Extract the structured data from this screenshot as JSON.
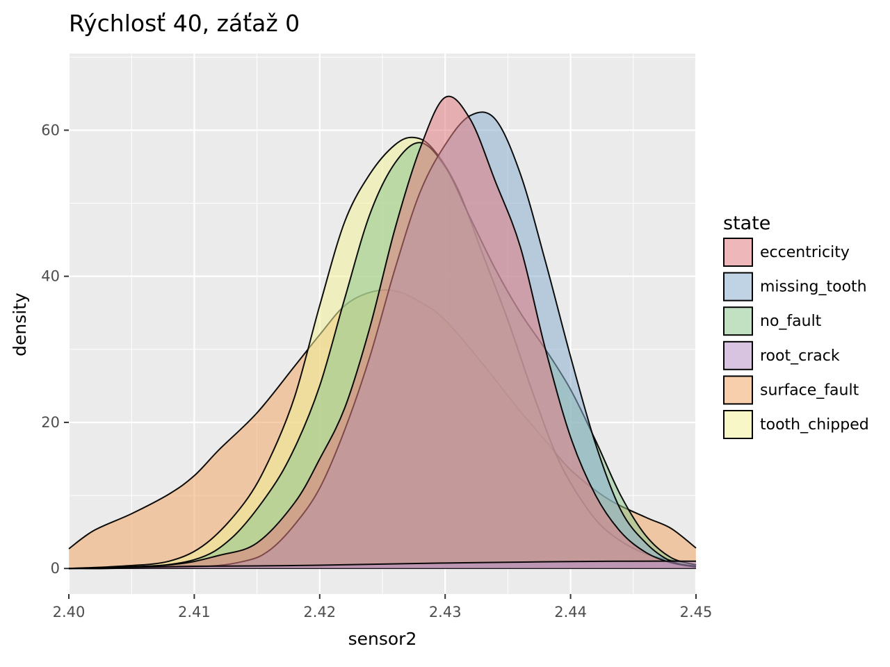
{
  "chart_data": {
    "type": "area",
    "title": "Rýchlosť 40, záťaž 0",
    "xlabel": "sensor2",
    "ylabel": "density",
    "xlim": [
      2.4,
      2.45
    ],
    "ylim": [
      -3.5,
      70.5
    ],
    "x_ticks": [
      2.4,
      2.41,
      2.42,
      2.43,
      2.44,
      2.45
    ],
    "x_tick_labels": [
      "2.40",
      "2.41",
      "2.42",
      "2.43",
      "2.44",
      "2.45"
    ],
    "y_ticks": [
      0,
      20,
      40,
      60
    ],
    "y_tick_labels": [
      "0",
      "20",
      "40",
      "60"
    ],
    "grid": true,
    "legend_title": "state",
    "legend_position": "right",
    "series": [
      {
        "name": "surface_fault",
        "color": "#F0A868",
        "points": [
          [
            2.4,
            2.7
          ],
          [
            2.402,
            5.2
          ],
          [
            2.405,
            7.5
          ],
          [
            2.408,
            10.2
          ],
          [
            2.41,
            12.7
          ],
          [
            2.412,
            16.3
          ],
          [
            2.415,
            21.3
          ],
          [
            2.418,
            27.7
          ],
          [
            2.42,
            32.0
          ],
          [
            2.422,
            36.0
          ],
          [
            2.424,
            37.8
          ],
          [
            2.426,
            38.0
          ],
          [
            2.428,
            36.5
          ],
          [
            2.43,
            34.0
          ],
          [
            2.433,
            28.0
          ],
          [
            2.436,
            21.5
          ],
          [
            2.438,
            17.5
          ],
          [
            2.44,
            13.5
          ],
          [
            2.443,
            9.5
          ],
          [
            2.446,
            7.0
          ],
          [
            2.448,
            5.5
          ],
          [
            2.45,
            2.8
          ]
        ]
      },
      {
        "name": "tooth_chipped",
        "color": "#F0F09A",
        "points": [
          [
            2.4,
            0.0
          ],
          [
            2.404,
            0.3
          ],
          [
            2.408,
            1.0
          ],
          [
            2.411,
            3.5
          ],
          [
            2.414,
            9.0
          ],
          [
            2.416,
            15.0
          ],
          [
            2.418,
            23.5
          ],
          [
            2.42,
            36.0
          ],
          [
            2.422,
            47.5
          ],
          [
            2.424,
            54.0
          ],
          [
            2.426,
            58.0
          ],
          [
            2.4275,
            59.0
          ],
          [
            2.429,
            57.5
          ],
          [
            2.431,
            52.0
          ],
          [
            2.433,
            43.0
          ],
          [
            2.435,
            34.0
          ],
          [
            2.437,
            24.0
          ],
          [
            2.439,
            15.0
          ],
          [
            2.441,
            9.0
          ],
          [
            2.443,
            5.0
          ],
          [
            2.446,
            2.0
          ],
          [
            2.45,
            0.5
          ]
        ]
      },
      {
        "name": "no_fault",
        "color": "#90C890",
        "points": [
          [
            2.4,
            0.0
          ],
          [
            2.405,
            0.1
          ],
          [
            2.41,
            1.2
          ],
          [
            2.413,
            4.2
          ],
          [
            2.416,
            10.5
          ],
          [
            2.418,
            16.5
          ],
          [
            2.42,
            25.0
          ],
          [
            2.422,
            37.0
          ],
          [
            2.424,
            48.5
          ],
          [
            2.426,
            55.5
          ],
          [
            2.428,
            58.3
          ],
          [
            2.43,
            55.0
          ],
          [
            2.432,
            48.0
          ],
          [
            2.434,
            41.0
          ],
          [
            2.436,
            35.0
          ],
          [
            2.438,
            30.0
          ],
          [
            2.44,
            24.5
          ],
          [
            2.442,
            17.5
          ],
          [
            2.444,
            10.0
          ],
          [
            2.446,
            4.5
          ],
          [
            2.448,
            1.5
          ],
          [
            2.45,
            0.5
          ]
        ]
      },
      {
        "name": "missing_tooth",
        "color": "#8CAED0",
        "points": [
          [
            2.4,
            0.0
          ],
          [
            2.41,
            0.2
          ],
          [
            2.414,
            1.0
          ],
          [
            2.416,
            2.5
          ],
          [
            2.418,
            6.0
          ],
          [
            2.42,
            11.0
          ],
          [
            2.422,
            19.0
          ],
          [
            2.424,
            29.0
          ],
          [
            2.426,
            41.0
          ],
          [
            2.428,
            51.5
          ],
          [
            2.43,
            58.0
          ],
          [
            2.432,
            62.0
          ],
          [
            2.434,
            61.5
          ],
          [
            2.436,
            54.0
          ],
          [
            2.438,
            42.0
          ],
          [
            2.44,
            29.0
          ],
          [
            2.442,
            17.0
          ],
          [
            2.444,
            8.0
          ],
          [
            2.446,
            3.5
          ],
          [
            2.448,
            1.0
          ],
          [
            2.45,
            0.3
          ]
        ]
      },
      {
        "name": "eccentricity",
        "color": "#E07C82",
        "points": [
          [
            2.4,
            0.0
          ],
          [
            2.408,
            0.5
          ],
          [
            2.412,
            1.8
          ],
          [
            2.415,
            3.5
          ],
          [
            2.418,
            9.0
          ],
          [
            2.42,
            15.0
          ],
          [
            2.422,
            22.0
          ],
          [
            2.424,
            33.0
          ],
          [
            2.426,
            46.5
          ],
          [
            2.428,
            57.5
          ],
          [
            2.43,
            64.5
          ],
          [
            2.432,
            61.5
          ],
          [
            2.434,
            53.0
          ],
          [
            2.436,
            44.0
          ],
          [
            2.438,
            30.0
          ],
          [
            2.44,
            18.0
          ],
          [
            2.442,
            10.0
          ],
          [
            2.444,
            5.0
          ],
          [
            2.446,
            2.2
          ],
          [
            2.448,
            0.8
          ],
          [
            2.45,
            0.2
          ]
        ]
      },
      {
        "name": "root_crack",
        "color": "#B894C8",
        "points": [
          [
            2.4,
            0.0
          ],
          [
            2.405,
            0.15
          ],
          [
            2.41,
            0.3
          ],
          [
            2.415,
            0.35
          ],
          [
            2.42,
            0.45
          ],
          [
            2.425,
            0.6
          ],
          [
            2.43,
            0.75
          ],
          [
            2.435,
            0.85
          ],
          [
            2.44,
            0.95
          ],
          [
            2.445,
            1.0
          ],
          [
            2.45,
            1.0
          ]
        ]
      }
    ]
  }
}
